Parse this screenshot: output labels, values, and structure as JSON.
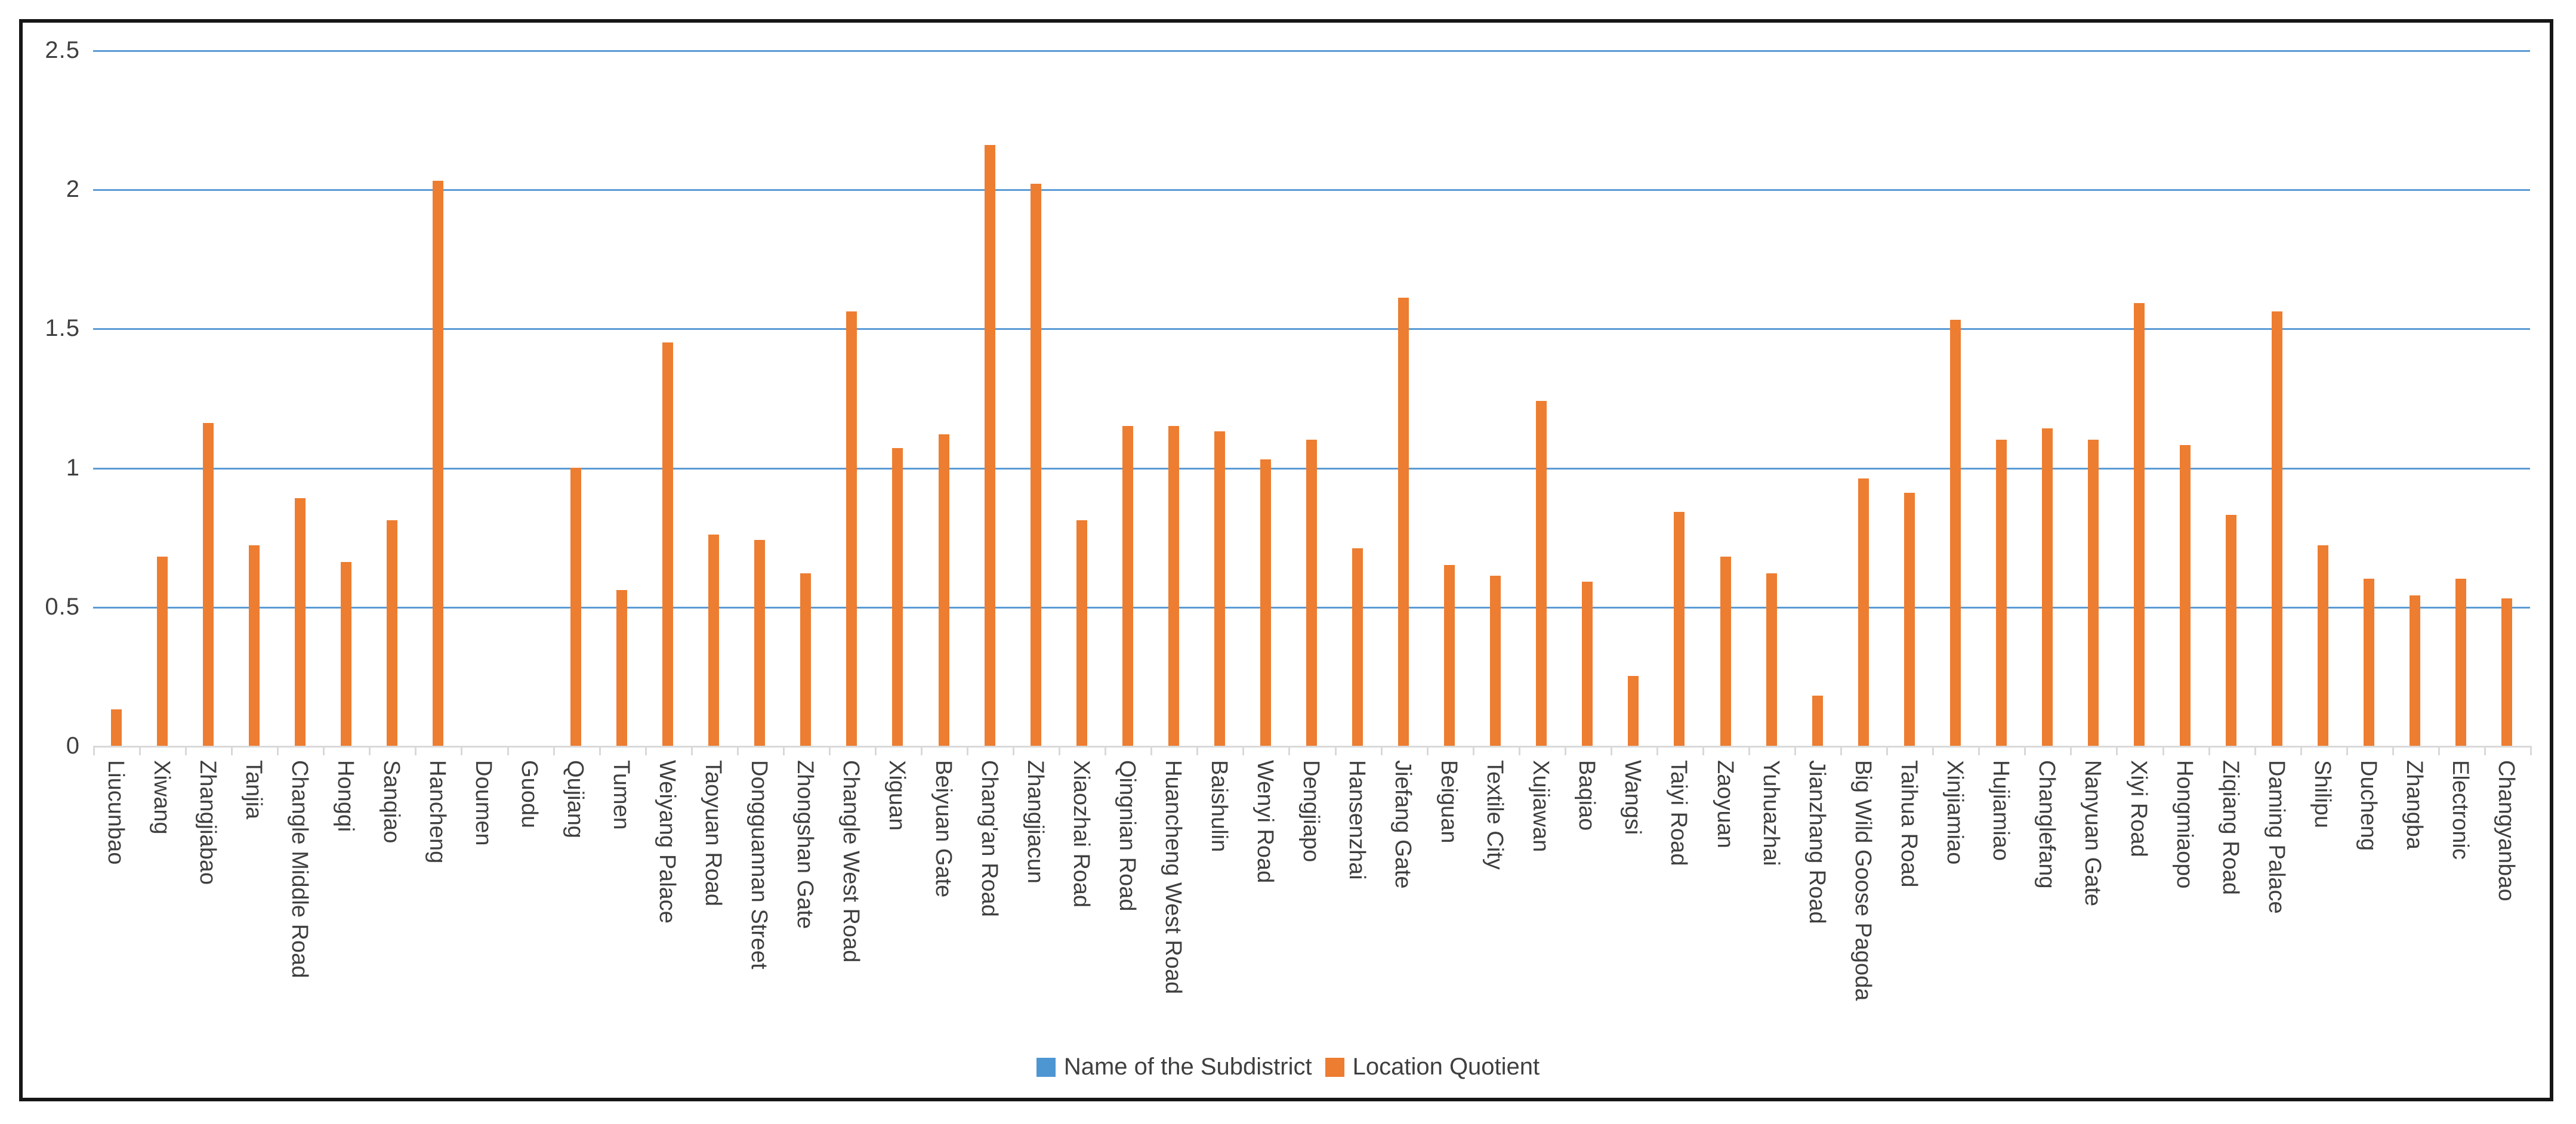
{
  "legend": {
    "items": [
      {
        "label": "Name of the Subdistrict",
        "color": "#4E96D2"
      },
      {
        "label": "Location Quotient",
        "color": "#ED7D31"
      }
    ]
  },
  "y_axis": {
    "tick_labels": [
      "2.5",
      "2",
      "1.5",
      "1",
      "0.5",
      "0"
    ]
  },
  "colors": {
    "bar": "#ED7D31",
    "gridline": "#5B9BD5",
    "axis": "#D9D9D9",
    "text": "#3F3F3F",
    "frame": "#161616"
  },
  "chart_data": {
    "type": "bar",
    "title": "",
    "xlabel": "",
    "ylabel": "",
    "ylim": [
      0,
      2.5
    ],
    "ytick_step": 0.5,
    "grid": "horizontal",
    "legend_position": "bottom",
    "series_name": "Location Quotient",
    "categories": [
      "Liucunbao",
      "Xiwang",
      "Zhangjiabao",
      "Tanjia",
      "Changle Middle Road",
      "Hongqi",
      "Sanqiao",
      "Hancheng",
      "Doumen",
      "Guodu",
      "Qujiang",
      "Tumen",
      "Weiyang Palace",
      "Taoyuan Road",
      "Dongguannan Street",
      "Zhongshan Gate",
      "Changle West Road",
      "Xiguan",
      "Beiyuan Gate",
      "Chang'an Road",
      "Zhangjiacun",
      "Xiaozhai Road",
      "Qingnian Road",
      "Huancheng West Road",
      "Baishulin",
      "Wenyi Road",
      "Dengjiapo",
      "Hansenzhai",
      "Jiefang Gate",
      "Beiguan",
      "Textile City",
      "Xujiawan",
      "Baqiao",
      "Wangsi",
      "Taiyi Road",
      "Zaoyuan",
      "Yuhuazhai",
      "Jianzhang Road",
      "Big Wild Goose Pagoda",
      "Taihua Road",
      "Xinjiamiao",
      "Hujiamiao",
      "Changlefang",
      "Nanyuan Gate",
      "Xiyi Road",
      "Hongmiaopo",
      "Ziqiang Road",
      "Daming Palace",
      "Shilipu",
      "Ducheng",
      "Zhangba",
      "Electronic",
      "Changyanbao"
    ],
    "values": [
      0.13,
      0.68,
      1.16,
      0.72,
      0.89,
      0.66,
      0.81,
      2.03,
      0,
      0,
      1.0,
      0.56,
      1.45,
      0.76,
      0.74,
      0.62,
      1.56,
      1.07,
      1.12,
      2.16,
      2.02,
      0.81,
      1.15,
      1.15,
      1.13,
      1.03,
      1.1,
      0.71,
      1.61,
      0.65,
      0.61,
      1.24,
      0.59,
      0.25,
      0.84,
      0.68,
      0.62,
      0.18,
      0.96,
      0.91,
      1.53,
      1.1,
      1.14,
      1.1,
      1.59,
      1.08,
      0.83,
      1.56,
      0.72,
      0.6,
      0.54,
      0.6,
      0.53
    ]
  }
}
